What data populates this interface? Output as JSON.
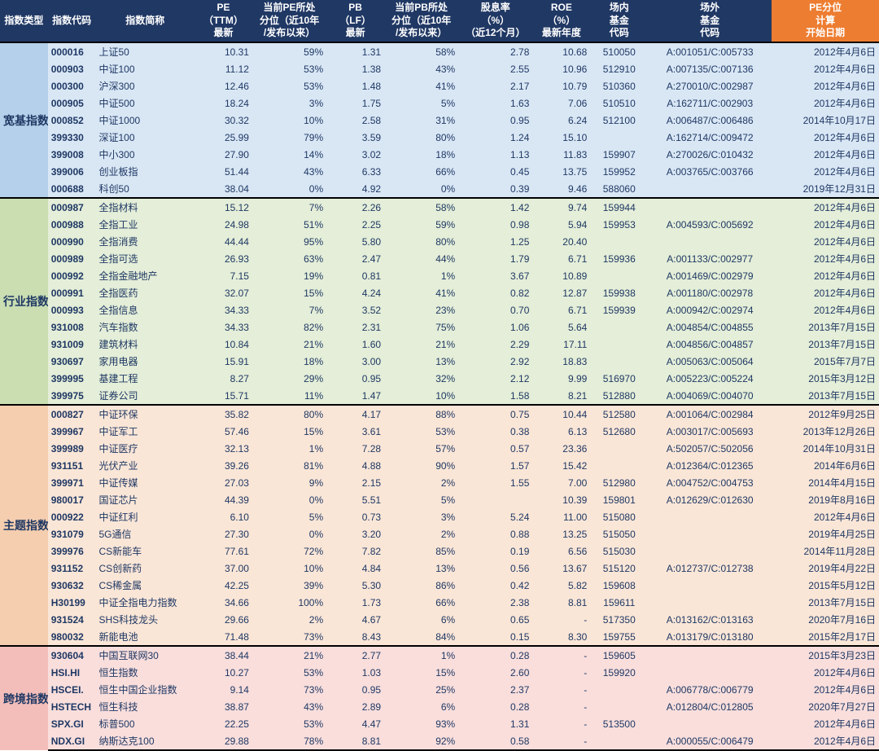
{
  "headers": {
    "type": "指数类型",
    "code": "指数代码",
    "name": "指数简称",
    "pe": "PE\n（TTM）\n最新",
    "pe_pct": "当前PE所处\n分位（近10年\n/发布以来）",
    "pb": "PB\n（LF）\n最新",
    "pb_pct": "当前PB所处\n分位（近10年\n/发布以来）",
    "div": "股息率\n（%）\n（近12个月）",
    "roe": "ROE\n（%）\n最新年度",
    "fund_in": "场内\n基金\n代码",
    "fund_out": "场外\n基金\n代码",
    "date": "PE分位\n计算\n开始日期"
  },
  "groups": [
    {
      "name": "宽基指数",
      "bg": "#d9e7f5",
      "cat_bg": "#b4d0ea",
      "rows": [
        {
          "code": "000016",
          "name": "上证50",
          "pe": "10.31",
          "pe_pct": "59%",
          "pb": "1.31",
          "pb_pct": "58%",
          "div": "2.78",
          "roe": "10.68",
          "fi": "510050",
          "fo": "A:001051/C:005733",
          "date": "2012年4月6日"
        },
        {
          "code": "000903",
          "name": "中证100",
          "pe": "11.12",
          "pe_pct": "53%",
          "pb": "1.38",
          "pb_pct": "43%",
          "div": "2.55",
          "roe": "10.96",
          "fi": "512910",
          "fo": "A:007135/C:007136",
          "date": "2012年4月6日"
        },
        {
          "code": "000300",
          "name": "沪深300",
          "pe": "12.46",
          "pe_pct": "53%",
          "pb": "1.48",
          "pb_pct": "41%",
          "div": "2.17",
          "roe": "10.79",
          "fi": "510360",
          "fo": "A:270010/C:002987",
          "date": "2012年4月6日"
        },
        {
          "code": "000905",
          "name": "中证500",
          "pe": "18.24",
          "pe_pct": "3%",
          "pb": "1.75",
          "pb_pct": "5%",
          "div": "1.63",
          "roe": "7.06",
          "fi": "510510",
          "fo": "A:162711/C:002903",
          "date": "2012年4月6日"
        },
        {
          "code": "000852",
          "name": "中证1000",
          "pe": "30.32",
          "pe_pct": "10%",
          "pb": "2.58",
          "pb_pct": "31%",
          "div": "0.95",
          "roe": "6.24",
          "fi": "512100",
          "fo": "A:006487/C:006486",
          "date": "2014年10月17日"
        },
        {
          "code": "399330",
          "name": "深证100",
          "pe": "25.99",
          "pe_pct": "79%",
          "pb": "3.59",
          "pb_pct": "80%",
          "div": "1.24",
          "roe": "15.10",
          "fi": "",
          "fo": "A:162714/C:009472",
          "date": "2012年4月6日"
        },
        {
          "code": "399008",
          "name": "中小300",
          "pe": "27.90",
          "pe_pct": "14%",
          "pb": "3.02",
          "pb_pct": "18%",
          "div": "1.13",
          "roe": "11.83",
          "fi": "159907",
          "fo": "A:270026/C:010432",
          "date": "2012年4月6日"
        },
        {
          "code": "399006",
          "name": "创业板指",
          "pe": "51.44",
          "pe_pct": "43%",
          "pb": "6.33",
          "pb_pct": "66%",
          "div": "0.45",
          "roe": "13.75",
          "fi": "159952",
          "fo": "A:003765/C:003766",
          "date": "2012年4月6日"
        },
        {
          "code": "000688",
          "name": "科创50",
          "pe": "38.04",
          "pe_pct": "0%",
          "pb": "4.92",
          "pb_pct": "0%",
          "div": "0.39",
          "roe": "9.46",
          "fi": "588060",
          "fo": "",
          "date": "2019年12月31日"
        }
      ]
    },
    {
      "name": "行业指数",
      "bg": "#e4eed8",
      "cat_bg": "#cadeb2",
      "rows": [
        {
          "code": "000987",
          "name": "全指材料",
          "pe": "15.12",
          "pe_pct": "7%",
          "pb": "2.26",
          "pb_pct": "58%",
          "div": "1.42",
          "roe": "9.74",
          "fi": "159944",
          "fo": "",
          "date": "2012年4月6日"
        },
        {
          "code": "000988",
          "name": "全指工业",
          "pe": "24.98",
          "pe_pct": "51%",
          "pb": "2.25",
          "pb_pct": "59%",
          "div": "0.98",
          "roe": "5.94",
          "fi": "159953",
          "fo": "A:004593/C:005692",
          "date": "2012年4月6日"
        },
        {
          "code": "000990",
          "name": "全指消费",
          "pe": "44.44",
          "pe_pct": "95%",
          "pb": "5.80",
          "pb_pct": "80%",
          "div": "1.25",
          "roe": "20.40",
          "fi": "",
          "fo": "",
          "date": "2012年4月6日"
        },
        {
          "code": "000989",
          "name": "全指可选",
          "pe": "26.93",
          "pe_pct": "63%",
          "pb": "2.47",
          "pb_pct": "44%",
          "div": "1.79",
          "roe": "6.71",
          "fi": "159936",
          "fo": "A:001133/C:002977",
          "date": "2012年4月6日"
        },
        {
          "code": "000992",
          "name": "全指金融地产",
          "pe": "7.15",
          "pe_pct": "19%",
          "pb": "0.81",
          "pb_pct": "1%",
          "div": "3.67",
          "roe": "10.89",
          "fi": "",
          "fo": "A:001469/C:002979",
          "date": "2012年4月6日"
        },
        {
          "code": "000991",
          "name": "全指医药",
          "pe": "32.07",
          "pe_pct": "15%",
          "pb": "4.24",
          "pb_pct": "41%",
          "div": "0.82",
          "roe": "12.87",
          "fi": "159938",
          "fo": "A:001180/C:002978",
          "date": "2012年4月6日"
        },
        {
          "code": "000993",
          "name": "全指信息",
          "pe": "34.33",
          "pe_pct": "7%",
          "pb": "3.52",
          "pb_pct": "23%",
          "div": "0.70",
          "roe": "6.71",
          "fi": "159939",
          "fo": "A:000942/C:002974",
          "date": "2012年4月6日"
        },
        {
          "code": "931008",
          "name": "汽车指数",
          "pe": "34.33",
          "pe_pct": "82%",
          "pb": "2.31",
          "pb_pct": "75%",
          "div": "1.06",
          "roe": "5.64",
          "fi": "",
          "fo": "A:004854/C:004855",
          "date": "2013年7月15日"
        },
        {
          "code": "931009",
          "name": "建筑材料",
          "pe": "10.84",
          "pe_pct": "21%",
          "pb": "1.60",
          "pb_pct": "21%",
          "div": "2.29",
          "roe": "17.11",
          "fi": "",
          "fo": "A:004856/C:004857",
          "date": "2013年7月15日"
        },
        {
          "code": "930697",
          "name": "家用电器",
          "pe": "15.91",
          "pe_pct": "18%",
          "pb": "3.00",
          "pb_pct": "13%",
          "div": "2.92",
          "roe": "18.83",
          "fi": "",
          "fo": "A:005063/C:005064",
          "date": "2015年7月7日"
        },
        {
          "code": "399995",
          "name": "基建工程",
          "pe": "8.27",
          "pe_pct": "29%",
          "pb": "0.95",
          "pb_pct": "32%",
          "div": "2.12",
          "roe": "9.99",
          "fi": "516970",
          "fo": "A:005223/C:005224",
          "date": "2015年3月12日"
        },
        {
          "code": "399975",
          "name": "证券公司",
          "pe": "15.71",
          "pe_pct": "11%",
          "pb": "1.47",
          "pb_pct": "10%",
          "div": "1.58",
          "roe": "8.21",
          "fi": "512880",
          "fo": "A:004069/C:004070",
          "date": "2013年7月15日"
        }
      ]
    },
    {
      "name": "主题指数",
      "bg": "#fae6d7",
      "cat_bg": "#f5ceaf",
      "rows": [
        {
          "code": "000827",
          "name": "中证环保",
          "pe": "35.82",
          "pe_pct": "80%",
          "pb": "4.17",
          "pb_pct": "88%",
          "div": "0.75",
          "roe": "10.44",
          "fi": "512580",
          "fo": "A:001064/C:002984",
          "date": "2012年9月25日"
        },
        {
          "code": "399967",
          "name": "中证军工",
          "pe": "57.46",
          "pe_pct": "15%",
          "pb": "3.61",
          "pb_pct": "53%",
          "div": "0.38",
          "roe": "6.13",
          "fi": "512680",
          "fo": "A:003017/C:005693",
          "date": "2013年12月26日"
        },
        {
          "code": "399989",
          "name": "中证医疗",
          "pe": "32.13",
          "pe_pct": "1%",
          "pb": "7.28",
          "pb_pct": "57%",
          "div": "0.57",
          "roe": "23.36",
          "fi": "",
          "fo": "A:502057/C:502056",
          "date": "2014年10月31日"
        },
        {
          "code": "931151",
          "name": "光伏产业",
          "pe": "39.26",
          "pe_pct": "81%",
          "pb": "4.88",
          "pb_pct": "90%",
          "div": "1.57",
          "roe": "15.42",
          "fi": "",
          "fo": "A:012364/C:012365",
          "date": "2014年6月6日"
        },
        {
          "code": "399971",
          "name": "中证传媒",
          "pe": "27.03",
          "pe_pct": "9%",
          "pb": "2.15",
          "pb_pct": "2%",
          "div": "1.55",
          "roe": "7.00",
          "fi": "512980",
          "fo": "A:004752/C:004753",
          "date": "2014年4月15日"
        },
        {
          "code": "980017",
          "name": "国证芯片",
          "pe": "44.39",
          "pe_pct": "0%",
          "pb": "5.51",
          "pb_pct": "5%",
          "div": "",
          "roe": "10.39",
          "fi": "159801",
          "fo": "A:012629/C:012630",
          "date": "2019年8月16日"
        },
        {
          "code": "000922",
          "name": "中证红利",
          "pe": "6.10",
          "pe_pct": "5%",
          "pb": "0.73",
          "pb_pct": "3%",
          "div": "5.24",
          "roe": "11.00",
          "fi": "515080",
          "fo": "",
          "date": "2012年4月6日"
        },
        {
          "code": "931079",
          "name": "5G通信",
          "pe": "27.30",
          "pe_pct": "0%",
          "pb": "3.20",
          "pb_pct": "2%",
          "div": "0.88",
          "roe": "13.25",
          "fi": "515050",
          "fo": "",
          "date": "2019年4月25日"
        },
        {
          "code": "399976",
          "name": "CS新能车",
          "pe": "77.61",
          "pe_pct": "72%",
          "pb": "7.82",
          "pb_pct": "85%",
          "div": "0.19",
          "roe": "6.56",
          "fi": "515030",
          "fo": "",
          "date": "2014年11月28日"
        },
        {
          "code": "931152",
          "name": "CS创新药",
          "pe": "37.00",
          "pe_pct": "10%",
          "pb": "4.84",
          "pb_pct": "13%",
          "div": "0.56",
          "roe": "13.67",
          "fi": "515120",
          "fo": "A:012737/C:012738",
          "date": "2019年4月22日"
        },
        {
          "code": "930632",
          "name": "CS稀金属",
          "pe": "42.25",
          "pe_pct": "39%",
          "pb": "5.30",
          "pb_pct": "86%",
          "div": "0.42",
          "roe": "5.82",
          "fi": "159608",
          "fo": "",
          "date": "2015年5月12日"
        },
        {
          "code": "H30199",
          "name": "中证全指电力指数",
          "pe": "34.66",
          "pe_pct": "100%",
          "pb": "1.73",
          "pb_pct": "66%",
          "div": "2.38",
          "roe": "8.81",
          "fi": "159611",
          "fo": "",
          "date": "2013年7月15日"
        },
        {
          "code": "931524",
          "name": "SHS科技龙头",
          "pe": "29.66",
          "pe_pct": "2%",
          "pb": "4.67",
          "pb_pct": "6%",
          "div": "0.65",
          "roe": "-",
          "fi": "517350",
          "fo": "A:013162/C:013163",
          "date": "2020年7月16日"
        },
        {
          "code": "980032",
          "name": "新能电池",
          "pe": "71.48",
          "pe_pct": "73%",
          "pb": "8.43",
          "pb_pct": "84%",
          "div": "0.15",
          "roe": "8.30",
          "fi": "159755",
          "fo": "A:013179/C:013180",
          "date": "2015年2月17日"
        }
      ]
    },
    {
      "name": "跨境指数",
      "bg": "#f9dedc",
      "cat_bg": "#f3beba",
      "rows": [
        {
          "code": "930604",
          "name": "中国互联网30",
          "pe": "38.44",
          "pe_pct": "21%",
          "pb": "2.77",
          "pb_pct": "1%",
          "div": "0.28",
          "roe": "-",
          "fi": "159605",
          "fo": "",
          "date": "2015年3月23日"
        },
        {
          "code": "HSI.HI",
          "name": "恒生指数",
          "pe": "10.27",
          "pe_pct": "53%",
          "pb": "1.03",
          "pb_pct": "15%",
          "div": "2.60",
          "roe": "-",
          "fi": "159920",
          "fo": "",
          "date": "2012年4月6日"
        },
        {
          "code": "HSCEI.",
          "name": "恒生中国企业指数",
          "pe": "9.14",
          "pe_pct": "73%",
          "pb": "0.95",
          "pb_pct": "25%",
          "div": "2.37",
          "roe": "-",
          "fi": "",
          "fo": "A:006778/C:006779",
          "date": "2012年4月6日"
        },
        {
          "code": "HSTECH",
          "name": "恒生科技",
          "pe": "38.87",
          "pe_pct": "43%",
          "pb": "2.89",
          "pb_pct": "6%",
          "div": "0.28",
          "roe": "-",
          "fi": "",
          "fo": "A:012804/C:012805",
          "date": "2020年7月27日"
        },
        {
          "code": "SPX.GI",
          "name": "标普500",
          "pe": "22.25",
          "pe_pct": "53%",
          "pb": "4.47",
          "pb_pct": "93%",
          "div": "1.31",
          "roe": "-",
          "fi": "513500",
          "fo": "",
          "date": "2012年4月6日"
        },
        {
          "code": "NDX.GI",
          "name": "纳斯达克100",
          "pe": "29.88",
          "pe_pct": "78%",
          "pb": "8.81",
          "pb_pct": "92%",
          "div": "0.58",
          "roe": "-",
          "fi": "",
          "fo": "A:000055/C:006479",
          "date": "2012年4月6日"
        }
      ]
    }
  ]
}
